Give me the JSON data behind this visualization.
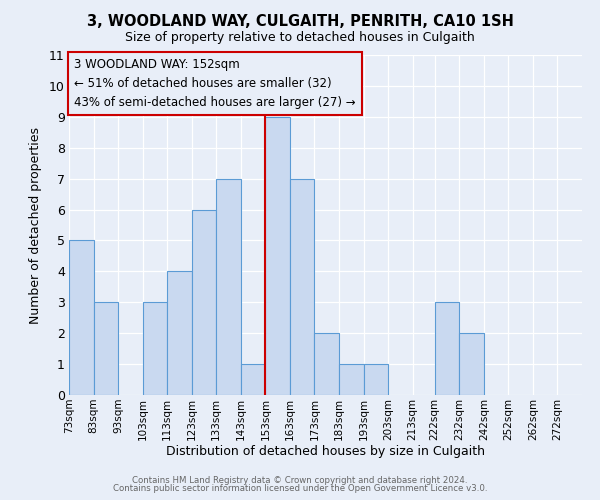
{
  "title": "3, WOODLAND WAY, CULGAITH, PENRITH, CA10 1SH",
  "subtitle": "Size of property relative to detached houses in Culgaith",
  "xlabel": "Distribution of detached houses by size in Culgaith",
  "ylabel": "Number of detached properties",
  "tick_labels": [
    "73sqm",
    "83sqm",
    "93sqm",
    "103sqm",
    "113sqm",
    "123sqm",
    "133sqm",
    "143sqm",
    "153sqm",
    "163sqm",
    "173sqm",
    "183sqm",
    "193sqm",
    "203sqm",
    "213sqm",
    "222sqm",
    "232sqm",
    "242sqm",
    "252sqm",
    "262sqm",
    "272sqm"
  ],
  "tick_positions": [
    73,
    83,
    93,
    103,
    113,
    123,
    133,
    143,
    153,
    163,
    173,
    183,
    193,
    203,
    213,
    222,
    232,
    242,
    252,
    262,
    272
  ],
  "bar_lefts": [
    73,
    83,
    93,
    103,
    113,
    123,
    133,
    143,
    153,
    163,
    173,
    183,
    193,
    203,
    222,
    232,
    242
  ],
  "bar_widths": [
    10,
    10,
    10,
    10,
    10,
    10,
    10,
    10,
    10,
    10,
    10,
    10,
    10,
    10,
    10,
    10,
    10
  ],
  "heights": [
    5,
    3,
    0,
    3,
    4,
    6,
    7,
    1,
    9,
    7,
    2,
    1,
    1,
    0,
    3,
    2,
    0
  ],
  "bar_facecolor": "#c9d9f0",
  "bar_edgecolor": "#5b9bd5",
  "marker_x": 153,
  "marker_color": "#cc0000",
  "annotation_title": "3 WOODLAND WAY: 152sqm",
  "annotation_line1": "← 51% of detached houses are smaller (32)",
  "annotation_line2": "43% of semi-detached houses are larger (27) →",
  "annotation_box_edgecolor": "#cc0000",
  "xlim_left": 73,
  "xlim_right": 282,
  "ylim": [
    0,
    11
  ],
  "yticks": [
    0,
    1,
    2,
    3,
    4,
    5,
    6,
    7,
    8,
    9,
    10,
    11
  ],
  "background_color": "#e8eef8",
  "grid_color": "#ffffff",
  "footer1": "Contains HM Land Registry data © Crown copyright and database right 2024.",
  "footer2": "Contains public sector information licensed under the Open Government Licence v3.0."
}
